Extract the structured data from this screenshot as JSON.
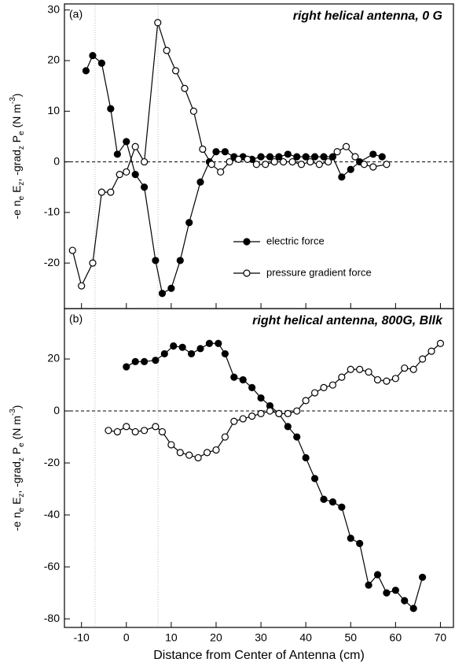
{
  "chart_data": [
    {
      "type": "line",
      "panel_label": "(a)",
      "title": "right helical antenna, 0 G",
      "ylabel": [
        {
          "text": "-e n"
        },
        {
          "text": "e",
          "shift": "sub"
        },
        {
          "text": " E"
        },
        {
          "text": "z",
          "shift": "sub"
        },
        {
          "text": ", -grad"
        },
        {
          "text": "z",
          "shift": "sub"
        },
        {
          "text": " P"
        },
        {
          "text": "e",
          "shift": "sub"
        },
        {
          "text": " (N m"
        },
        {
          "text": "-3",
          "shift": "super"
        },
        {
          "text": ")"
        }
      ],
      "xlim": [
        -13.8,
        72.9
      ],
      "ylim": [
        -29,
        31.2
      ],
      "yticks": [
        -20,
        -10,
        0,
        10,
        20,
        30
      ],
      "zero_line": true,
      "legend": "lower right",
      "series": [
        {
          "name": "electric force",
          "color": "#000000",
          "marker": "filled",
          "x": [
            -9,
            -7.5,
            -5.5,
            -3.5,
            -2,
            0,
            2,
            4,
            6.5,
            8,
            10,
            12,
            14,
            16.5,
            18.5,
            20,
            22,
            24,
            26,
            28,
            30,
            32,
            34,
            36,
            38,
            40,
            42,
            44,
            46,
            48,
            50,
            52,
            55,
            57
          ],
          "values": [
            18,
            21,
            19.5,
            10.5,
            1.5,
            4,
            -2.5,
            -5,
            -19.5,
            -26,
            -25,
            -19.5,
            -12,
            -4,
            0,
            2,
            2,
            1,
            1,
            0.5,
            1,
            1,
            1,
            1.5,
            1,
            1,
            1,
            1,
            1,
            -3,
            -1.5,
            0,
            1.5,
            1
          ]
        },
        {
          "name": "pressure gradient force",
          "color": "#000000",
          "marker": "open",
          "x": [
            -12,
            -10,
            -7.5,
            -5.5,
            -3.5,
            -1.5,
            0,
            2,
            4,
            7,
            9,
            11,
            13,
            15,
            17,
            19,
            21,
            23,
            25,
            27,
            29,
            31,
            33,
            35,
            37,
            39,
            41,
            43,
            45,
            47,
            49,
            51,
            53,
            55,
            58
          ],
          "values": [
            -17.5,
            -24.5,
            -20,
            -6,
            -6,
            -2.5,
            -2,
            3,
            0,
            27.5,
            22,
            18,
            14.5,
            10,
            2.5,
            -0.5,
            -2,
            0,
            0.5,
            0.5,
            -0.5,
            -0.5,
            0,
            0,
            0,
            -0.5,
            0,
            -0.5,
            0,
            2,
            3,
            1,
            -0.5,
            -1,
            -0.5
          ]
        }
      ]
    },
    {
      "type": "line",
      "panel_label": "(b)",
      "title": "right helical antenna, 800G, Bllk",
      "ylabel": [
        {
          "text": "-e n"
        },
        {
          "text": "e",
          "shift": "sub"
        },
        {
          "text": " E"
        },
        {
          "text": "z",
          "shift": "sub"
        },
        {
          "text": ", -grad"
        },
        {
          "text": "z",
          "shift": "sub"
        },
        {
          "text": " P"
        },
        {
          "text": "e",
          "shift": "sub"
        },
        {
          "text": " (N m"
        },
        {
          "text": "-3",
          "shift": "super"
        },
        {
          "text": ")"
        }
      ],
      "xlabel": "Distance from Center of Antenna (cm)",
      "xlim": [
        -13.8,
        72.9
      ],
      "xticks": [
        -10,
        0,
        10,
        20,
        30,
        40,
        50,
        60,
        70
      ],
      "ylim": [
        -83.3,
        39.4
      ],
      "yticks": [
        -80,
        -60,
        -40,
        -20,
        0,
        20
      ],
      "zero_line": true,
      "series": [
        {
          "name": "electric force",
          "color": "#000000",
          "marker": "filled",
          "x": [
            0,
            2,
            4,
            6.5,
            8.5,
            10.5,
            12.5,
            14.5,
            16.5,
            18.5,
            20.5,
            22,
            24,
            26,
            28,
            30,
            32,
            34,
            36,
            38,
            40,
            42,
            44,
            46,
            48,
            50,
            52,
            54,
            56,
            58,
            60,
            62,
            64,
            66
          ],
          "values": [
            17,
            19,
            19,
            19.5,
            22,
            25,
            24.5,
            22,
            24,
            26,
            26,
            22,
            13,
            12,
            9,
            5,
            2,
            -1,
            -6,
            -10,
            -18,
            -26,
            -34,
            -35,
            -37,
            -49,
            -51,
            -67,
            -63,
            -70,
            -69,
            -73,
            -76,
            -64
          ]
        },
        {
          "name": "pressure gradient force",
          "color": "#000000",
          "marker": "open",
          "x": [
            -4,
            -2,
            0,
            2,
            4,
            6.5,
            8,
            10,
            12,
            14,
            16,
            18,
            20,
            22,
            24,
            26,
            28,
            30,
            32,
            34,
            36,
            38,
            40,
            42,
            44,
            46,
            48,
            50,
            52,
            54,
            56,
            58,
            60,
            62,
            64,
            66,
            68,
            70
          ],
          "values": [
            -7.5,
            -8,
            -6,
            -8,
            -7.5,
            -6,
            -8,
            -13,
            -16,
            -17,
            -18,
            -16,
            -15,
            -10,
            -4,
            -3,
            -2,
            -1,
            0,
            -1,
            -1,
            0,
            4,
            7,
            9,
            10,
            13,
            16,
            16,
            15,
            12,
            11.5,
            12.5,
            16.5,
            16,
            20,
            23,
            26
          ]
        }
      ]
    }
  ]
}
